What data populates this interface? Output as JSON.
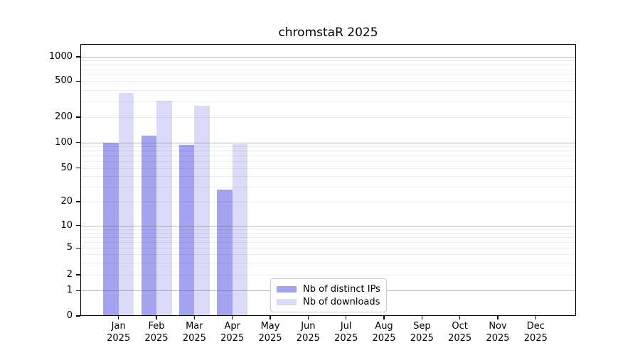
{
  "chart_data": {
    "type": "bar",
    "title": "chromstaR 2025",
    "categories": [
      "Jan",
      "Feb",
      "Mar",
      "Apr",
      "May",
      "Jun",
      "Jul",
      "Aug",
      "Sep",
      "Oct",
      "Nov",
      "Dec"
    ],
    "category_year": "2025",
    "series": [
      {
        "name": "Nb of distinct IPs",
        "color": "#a3a3f0",
        "values": [
          100,
          120,
          93,
          28,
          null,
          null,
          null,
          null,
          null,
          null,
          null,
          null
        ]
      },
      {
        "name": "Nb of downloads",
        "color": "#dbdbf9",
        "values": [
          370,
          305,
          265,
          96,
          null,
          null,
          null,
          null,
          null,
          null,
          null,
          null
        ]
      }
    ],
    "ylabel": "",
    "xlabel": "",
    "y_scale": "log-symlog",
    "y_ticks": [
      0,
      1,
      2,
      5,
      10,
      20,
      50,
      100,
      200,
      500,
      1000
    ],
    "ylim": [
      0,
      1500
    ],
    "grid": "horizontal, minor log gridlines, drawn over bars",
    "legend_position": "inside bottom-center"
  }
}
